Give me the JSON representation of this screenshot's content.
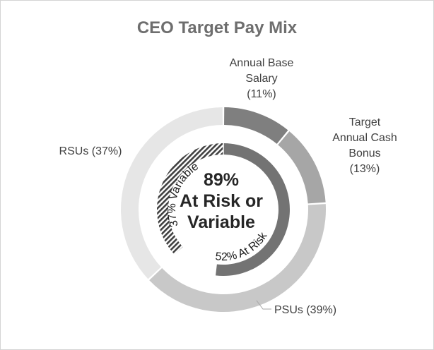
{
  "chart_data": {
    "type": "pie",
    "title": "CEO Target Pay Mix",
    "slices": [
      {
        "name": "Annual Base Salary",
        "value": 11,
        "label_lines": [
          "Annual Base",
          "Salary",
          "(11%)"
        ],
        "color": "#7f7f7f"
      },
      {
        "name": "Target Annual Cash Bonus",
        "value": 13,
        "label_lines": [
          "Target",
          "Annual Cash",
          "Bonus",
          "(13%)"
        ],
        "color": "#a6a6a6"
      },
      {
        "name": "PSUs",
        "value": 39,
        "label_lines": [
          "PSUs (39%)"
        ],
        "color": "#c8c8c8"
      },
      {
        "name": "RSUs",
        "value": 37,
        "label_lines": [
          "RSUs (37%)"
        ],
        "color": "#e6e6e6"
      }
    ],
    "inner_ring": [
      {
        "label": "52% At Risk",
        "value": 52,
        "color": "#737373",
        "pattern": "solid"
      },
      {
        "label": "37% Variable",
        "value": 37,
        "color": "#404040",
        "pattern": "diagonal-hatch"
      }
    ],
    "center_text": [
      "89%",
      "At Risk or",
      "Variable"
    ]
  }
}
